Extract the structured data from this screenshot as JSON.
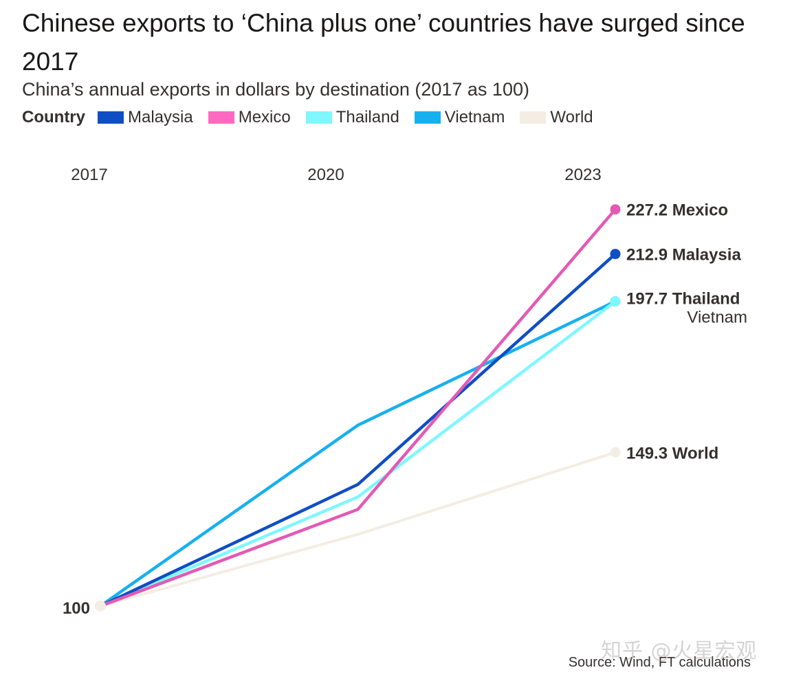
{
  "header": {
    "title": "Chinese exports to ‘China plus one’ countries have surged since 2017",
    "subtitle": "China’s annual exports in dollars by destination (2017 as 100)"
  },
  "legend": {
    "title": "Country",
    "items": [
      {
        "label": "Malaysia",
        "color": "#0f4ec4"
      },
      {
        "label": "Mexico",
        "color": "#ff69bf"
      },
      {
        "label": "Thailand",
        "color": "#7ef7ff"
      },
      {
        "label": "Vietnam",
        "color": "#17b0ef"
      },
      {
        "label": "World",
        "color": "#f4ede4"
      }
    ]
  },
  "chart_data": {
    "type": "line",
    "title": "Chinese exports to ‘China plus one’ countries have surged since 2017",
    "subtitle": "China’s annual exports in dollars by destination (2017 as 100)",
    "x": [
      2017,
      2020,
      2023
    ],
    "x_tick_labels": [
      "2017",
      "2020",
      "2023"
    ],
    "base_label": "100",
    "ylim": [
      100,
      230
    ],
    "grid": false,
    "legend_position": "top",
    "series": [
      {
        "name": "Malaysia",
        "color": "#0f4ec4",
        "values": [
          100,
          139,
          212.9
        ],
        "end_label": "212.9 Malaysia"
      },
      {
        "name": "Mexico",
        "color": "#e35ab5",
        "values": [
          100,
          131,
          227.2
        ],
        "end_label": "227.2 Mexico"
      },
      {
        "name": "Thailand",
        "color": "#7ef7ff",
        "values": [
          100,
          135,
          197.7
        ],
        "end_label": "197.7 Thailand"
      },
      {
        "name": "Vietnam",
        "color": "#17b0ef",
        "values": [
          100,
          158,
          197.7
        ],
        "end_label": "Vietnam"
      },
      {
        "name": "World",
        "color": "#f4ede4",
        "values": [
          100,
          123,
          149.3
        ],
        "end_label": "149.3 World"
      }
    ]
  },
  "footer": {
    "source": "Source: Wind, FT calculations",
    "watermark": "知乎 @火星宏观"
  }
}
